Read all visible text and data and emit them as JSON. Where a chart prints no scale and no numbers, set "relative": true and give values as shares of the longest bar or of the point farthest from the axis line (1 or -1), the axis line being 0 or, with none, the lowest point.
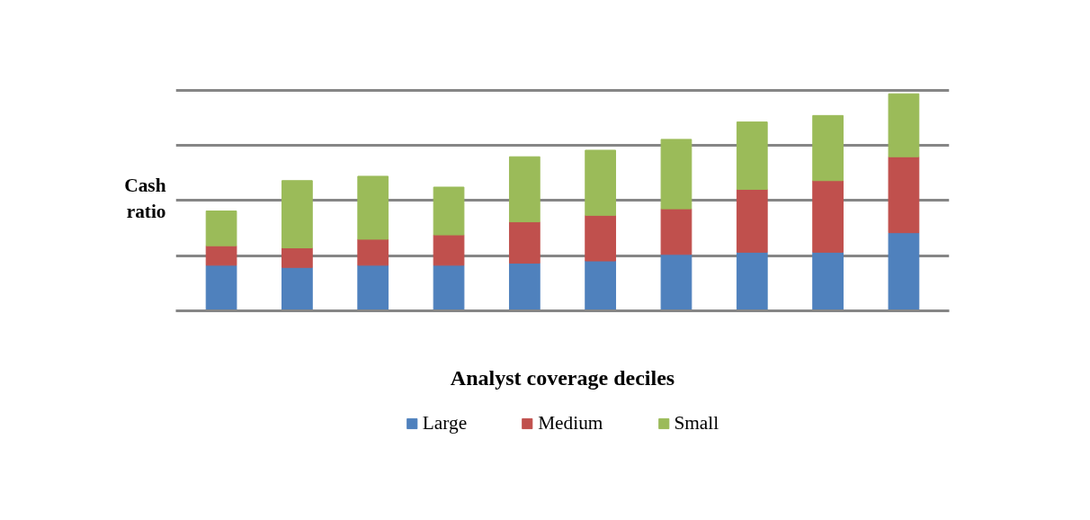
{
  "chart_data": {
    "type": "bar",
    "stacked": true,
    "relative": true,
    "xlabel": "Analyst coverage deciles",
    "ylabel": "Cash ratio",
    "categories": [
      null,
      null,
      null,
      null,
      null,
      null,
      null,
      null,
      null,
      null
    ],
    "series": [
      {
        "name": "Large",
        "color": "#4f81bd",
        "values": [
          0.21,
          0.2,
          0.21,
          0.21,
          0.22,
          0.23,
          0.26,
          0.27,
          0.27,
          0.36
        ]
      },
      {
        "name": "Medium",
        "color": "#c0504d",
        "values": [
          0.09,
          0.09,
          0.12,
          0.14,
          0.19,
          0.21,
          0.21,
          0.29,
          0.33,
          0.35
        ]
      },
      {
        "name": "Small",
        "color": "#9bbb59",
        "values": [
          0.16,
          0.31,
          0.29,
          0.22,
          0.3,
          0.3,
          0.32,
          0.31,
          0.3,
          0.29
        ]
      }
    ],
    "grid": "y",
    "legend": "bottom"
  }
}
